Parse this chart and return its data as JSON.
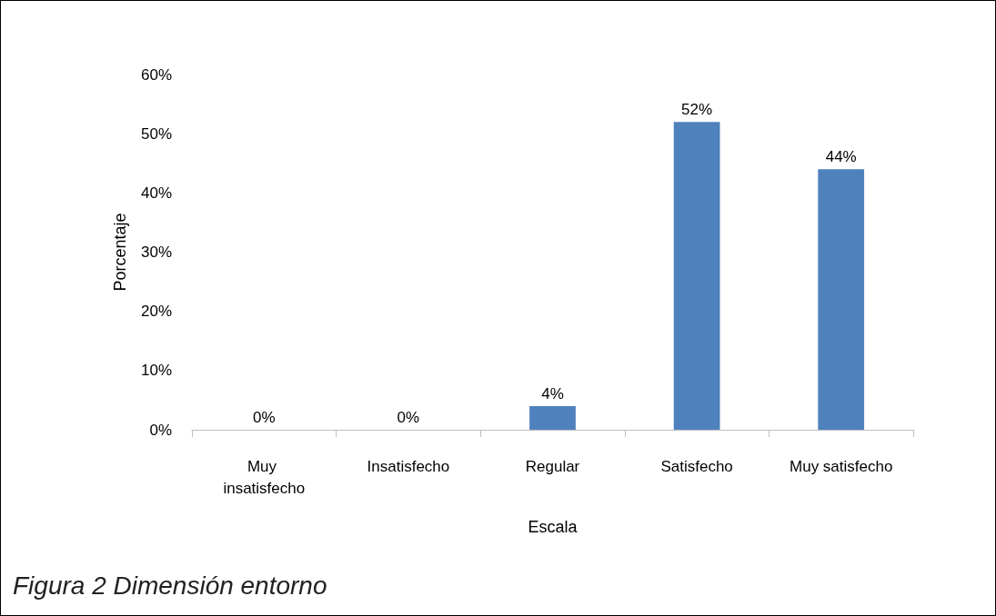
{
  "chart_data": {
    "type": "bar",
    "title": "Figura 2 Dimensión entorno",
    "xlabel": "Escala",
    "ylabel": "Porcentaje",
    "categories": [
      "Muy insatisfecho",
      "Insatisfecho",
      "Regular",
      "Satisfecho",
      "Muy satisfecho"
    ],
    "values": [
      0,
      0,
      4,
      52,
      44
    ],
    "value_labels": [
      "0%",
      "0%",
      "4%",
      "52%",
      "44%"
    ],
    "color": "#4f81bd",
    "ylim": [
      0,
      60
    ],
    "yticks": [
      {
        "value": 0,
        "label": "0%"
      },
      {
        "value": 10,
        "label": "10%"
      },
      {
        "value": 20,
        "label": "20%"
      },
      {
        "value": 30,
        "label": "30%"
      },
      {
        "value": 40,
        "label": "40%"
      },
      {
        "value": 50,
        "label": "50%"
      },
      {
        "value": 60,
        "label": "60%"
      }
    ],
    "grid": false
  }
}
